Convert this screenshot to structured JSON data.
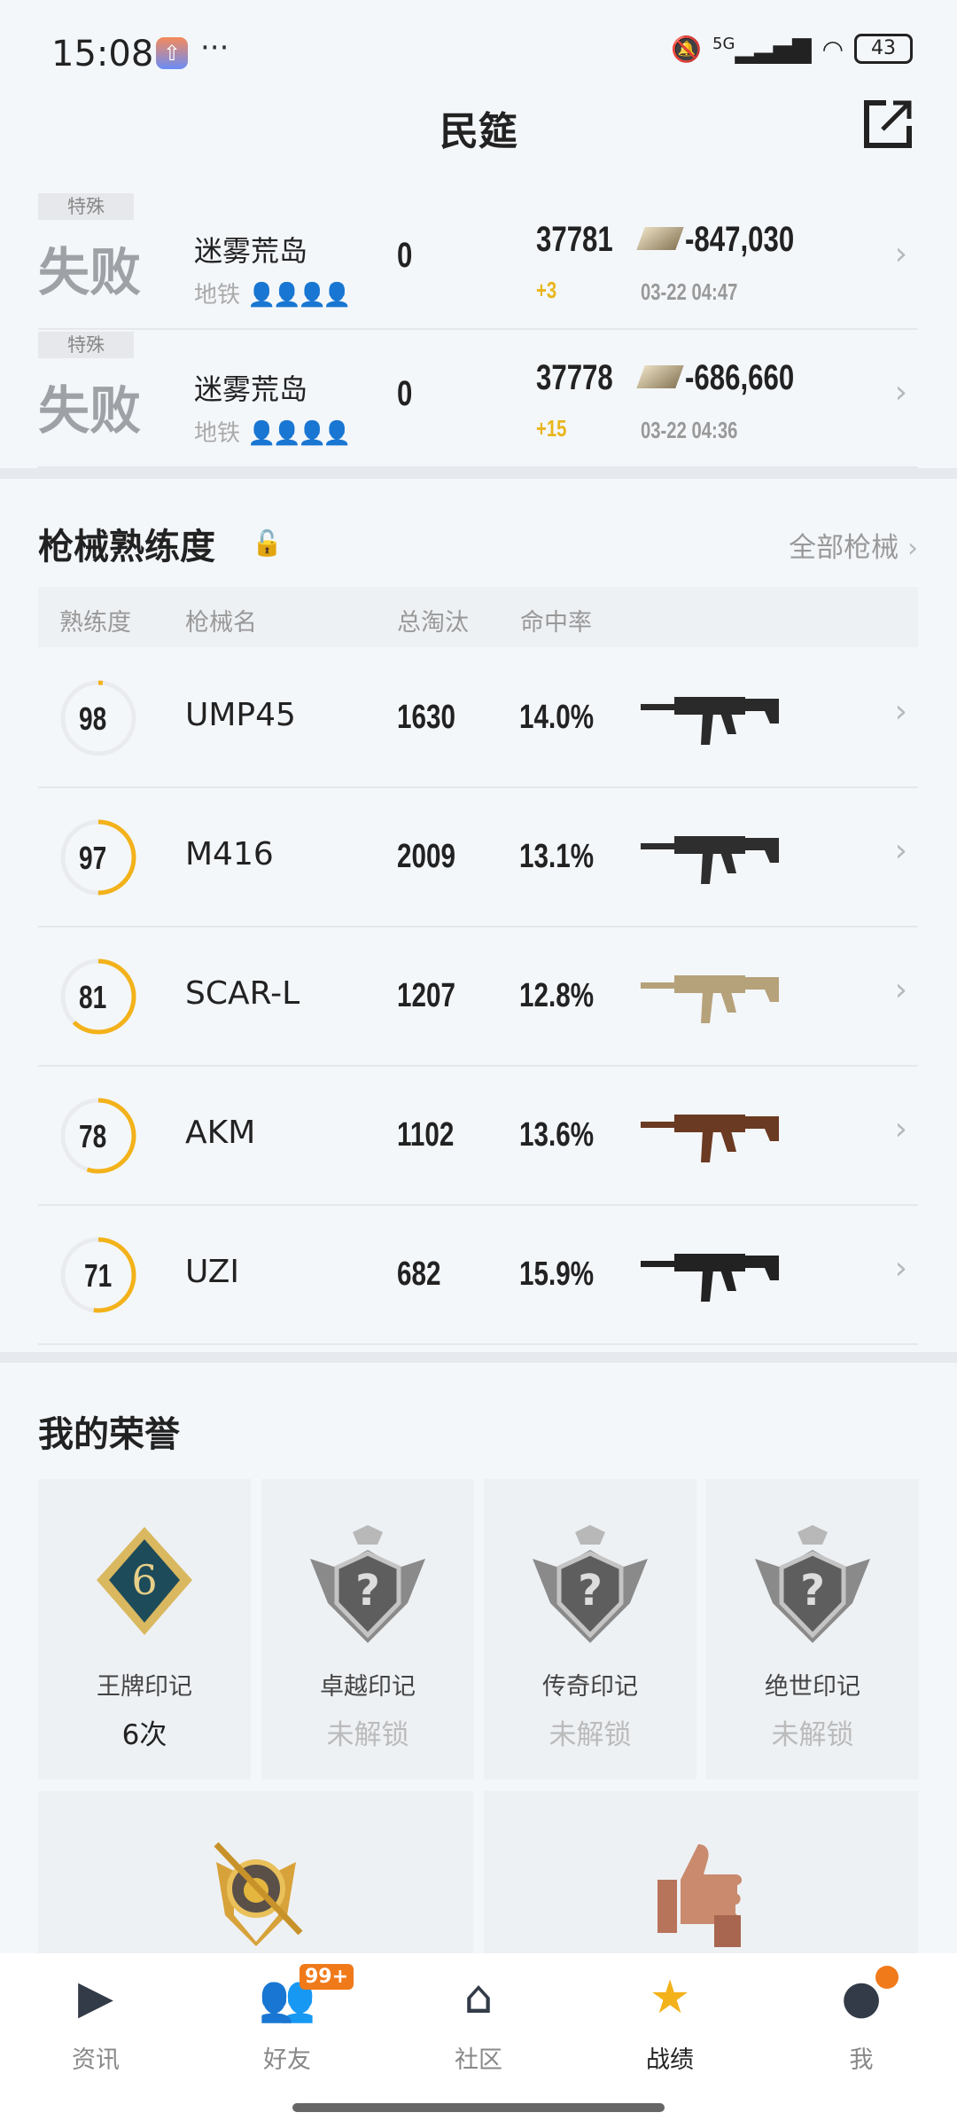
{
  "status": {
    "time": "15:08",
    "network": "5G",
    "battery": "43"
  },
  "header": {
    "title": "民筵"
  },
  "matches": [
    {
      "tag": "特殊",
      "result": "失败",
      "map": "迷雾荒岛",
      "mode": "地铁",
      "kills": "0",
      "rank": "37781",
      "delta": "+3",
      "money": "-847,030",
      "date": "03-22 04:47"
    },
    {
      "tag": "特殊",
      "result": "失败",
      "map": "迷雾荒岛",
      "mode": "地铁",
      "kills": "0",
      "rank": "37778",
      "delta": "+15",
      "money": "-686,660",
      "date": "03-22 04:36"
    }
  ],
  "guns": {
    "title": "枪械熟练度",
    "all_label": "全部枪械",
    "columns": [
      "熟练度",
      "枪械名",
      "总淘汰",
      "命中率"
    ],
    "rows": [
      {
        "mastery": "98",
        "ring_fill": 0.02,
        "name": "UMP45",
        "kills": "1630",
        "hit_rate": "14.0%",
        "color": "#2a2a2a"
      },
      {
        "mastery": "97",
        "ring_fill": 0.5,
        "name": "M416",
        "kills": "2009",
        "hit_rate": "13.1%",
        "color": "#2e2e2e"
      },
      {
        "mastery": "81",
        "ring_fill": 0.62,
        "name": "SCAR-L",
        "kills": "1207",
        "hit_rate": "12.8%",
        "color": "#b6a27a"
      },
      {
        "mastery": "78",
        "ring_fill": 0.55,
        "name": "AKM",
        "kills": "1102",
        "hit_rate": "13.6%",
        "color": "#6b3a22"
      },
      {
        "mastery": "71",
        "ring_fill": 0.52,
        "name": "UZI",
        "kills": "682",
        "hit_rate": "15.9%",
        "color": "#222222"
      }
    ]
  },
  "honors": {
    "title": "我的荣誉",
    "cards": [
      {
        "name": "王牌印记",
        "value": "6次",
        "unlocked": true,
        "badge": "6"
      },
      {
        "name": "卓越印记",
        "value": "未解锁",
        "unlocked": false,
        "badge": "?"
      },
      {
        "name": "传奇印记",
        "value": "未解锁",
        "unlocked": false,
        "badge": "?"
      },
      {
        "name": "绝世印记",
        "value": "未解锁",
        "unlocked": false,
        "badge": "?"
      }
    ]
  },
  "nav": {
    "items": [
      {
        "label": "资讯"
      },
      {
        "label": "好友",
        "badge": "99+"
      },
      {
        "label": "社区"
      },
      {
        "label": "战绩",
        "active": true
      },
      {
        "label": "我"
      }
    ]
  },
  "colors": {
    "accent": "#f3b21a",
    "badge": "#f07a1a"
  }
}
